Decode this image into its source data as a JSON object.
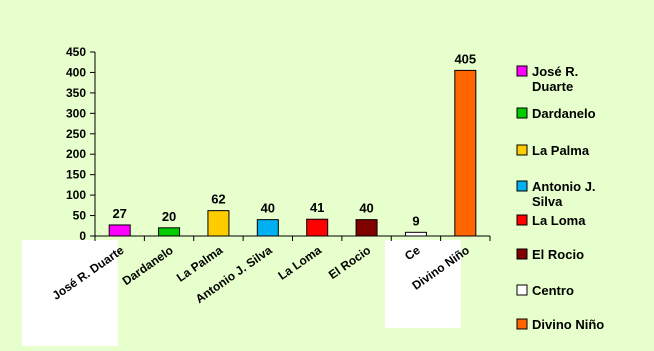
{
  "chart_data": {
    "type": "bar",
    "title": "",
    "xlabel": "",
    "ylabel": "",
    "ylim": [
      0,
      450
    ],
    "yticks": [
      0,
      50,
      100,
      150,
      200,
      250,
      300,
      350,
      400,
      450
    ],
    "grid": false,
    "legend_position": "right",
    "categories": [
      "José R. Duarte",
      "Dardanelo",
      "La Palma",
      "Antonio J. Silva",
      "La Loma",
      "El Rocio",
      "Centro",
      "Divino Niño"
    ],
    "values": [
      27,
      20,
      62,
      40,
      41,
      40,
      9,
      405
    ],
    "data_labels": [
      "27",
      "20",
      "62",
      "40",
      "41",
      "40",
      "9",
      "405"
    ],
    "legend": [
      "José R. Duarte",
      "Dardanelo",
      "La Palma",
      "Antonio J. Silva",
      "La Loma",
      "El Rocio",
      "Centro",
      "Divino Niño"
    ],
    "colors": [
      "#ff00ff",
      "#00cc00",
      "#ffcc00",
      "#00b0f0",
      "#ff0000",
      "#800000",
      "#ffffff",
      "#ff6600"
    ],
    "tick_labels_shown": [
      "José R. Duarte",
      "Dardanelo",
      "La Palma",
      "Antonio J. Silva",
      "La Loma",
      "El Rocio",
      "Ce",
      "Divino Niño"
    ]
  }
}
